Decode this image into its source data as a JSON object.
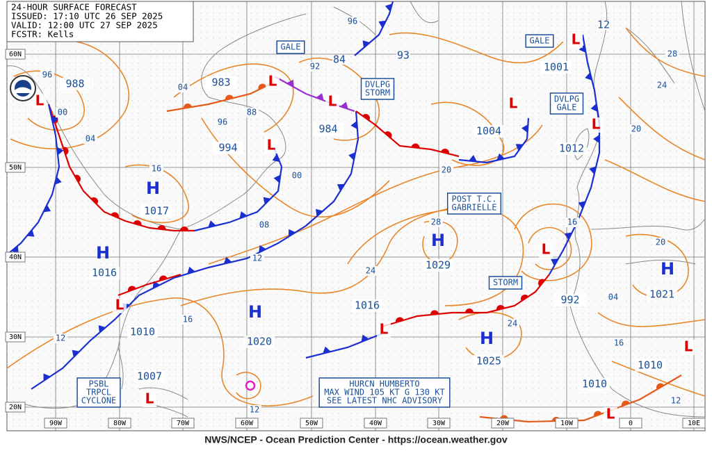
{
  "header": {
    "lines": [
      "24-HOUR SURFACE FORECAST",
      "ISSUED: 17:10 UTC 26 SEP 2025",
      "VALID: 12:00 UTC 27 SEP 2025",
      "FCSTR: Kells"
    ]
  },
  "footer": "NWS/NCEP - Ocean Prediction Center - https://ocean.weather.gov",
  "lat_labels": [
    "60N",
    "50N",
    "40N",
    "30N",
    "20N"
  ],
  "lon_labels": [
    "90W",
    "80W",
    "70W",
    "60W",
    "50W",
    "40W",
    "30W",
    "20W",
    "10W",
    "0",
    "10E"
  ],
  "centers": [
    {
      "type": "H",
      "pressure": "1017"
    },
    {
      "type": "H",
      "pressure": "1016"
    },
    {
      "type": "H",
      "pressure": "1020"
    },
    {
      "type": "H",
      "pressure": "1029"
    },
    {
      "type": "H",
      "pressure": "1025"
    },
    {
      "type": "H",
      "pressure": "1021"
    },
    {
      "type": "L",
      "pressure": "988"
    },
    {
      "type": "L",
      "pressure": "983"
    },
    {
      "type": "L",
      "pressure": "994"
    },
    {
      "type": "L",
      "pressure": "984"
    },
    {
      "type": "L",
      "pressure": "1004"
    },
    {
      "type": "L",
      "pressure": "1001"
    },
    {
      "type": "L",
      "pressure": "1012"
    },
    {
      "type": "L",
      "pressure": "992"
    },
    {
      "type": "L",
      "pressure": "1010"
    },
    {
      "type": "L",
      "pressure": "1007"
    },
    {
      "type": "L",
      "pressure": "1016"
    },
    {
      "type": "L",
      "pressure": "1010"
    },
    {
      "type": "L",
      "pressure": "1010"
    }
  ],
  "boxes": [
    [
      "GALE"
    ],
    [
      "DVLPG",
      "STORM"
    ],
    [
      "GALE"
    ],
    [
      "DVLPG",
      "GALE"
    ],
    [
      "POST T.C.",
      "GABRIELLE"
    ],
    [
      "STORM"
    ],
    [
      "PSBL",
      "TRPCL",
      "CYCLONE"
    ],
    [
      "HURCN HUMBERTO",
      "MAX WIND 105 KT G 130 KT",
      "SEE LATEST NHC ADVISORY"
    ]
  ],
  "isobar_labels": [
    "96",
    "00",
    "04",
    "04",
    "92",
    "96",
    "88",
    "00",
    "08",
    "12",
    "16",
    "16",
    "12",
    "12",
    "24",
    "28",
    "20",
    "24",
    "16",
    "20",
    "04",
    "16",
    "12",
    "24",
    "28",
    "20",
    "96",
    "84",
    "93",
    "12"
  ]
}
